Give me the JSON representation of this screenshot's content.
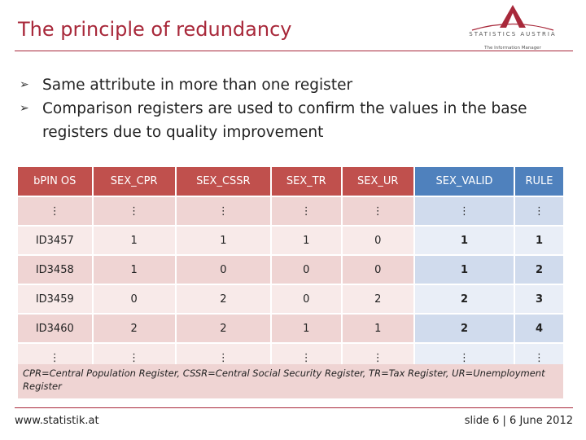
{
  "slide": {
    "title": "The principle of redundancy",
    "logo": {
      "name": "STATISTICS AUSTRIA",
      "tagline": "The Information Manager"
    },
    "bullet_marker": "➢",
    "bullets": [
      "Same attribute in more than one register",
      "Comparison registers are used to confirm the values in the base registers due to quality improvement"
    ]
  },
  "table": {
    "headers": [
      "bPIN OS",
      "SEX_CPR",
      "SEX_CSSR",
      "SEX_TR",
      "SEX_UR",
      "SEX_VALID",
      "RULE"
    ],
    "rows": [
      [
        "⋮",
        "⋮",
        "⋮",
        "⋮",
        "⋮",
        "⋮",
        "⋮"
      ],
      [
        "ID3457",
        "1",
        "1",
        "1",
        "0",
        "1",
        "1"
      ],
      [
        "ID3458",
        "1",
        "0",
        "0",
        "0",
        "1",
        "2"
      ],
      [
        "ID3459",
        "0",
        "2",
        "0",
        "2",
        "2",
        "3"
      ],
      [
        "ID3460",
        "2",
        "2",
        "1",
        "1",
        "2",
        "4"
      ],
      [
        "⋮",
        "⋮",
        "⋮",
        "⋮",
        "⋮",
        "⋮",
        "⋮"
      ]
    ],
    "footnote": "CPR=Central Population Register, CSSR=Central Social Security Register, TR=Tax Register, UR=Unemployment Register"
  },
  "footer": {
    "website": "www.statistik.at",
    "slide_info": "slide 6  |  6 June 2012"
  },
  "colors": {
    "accent": "#a8283a",
    "header_red": "#c0504d",
    "header_blue": "#4f81bd"
  }
}
